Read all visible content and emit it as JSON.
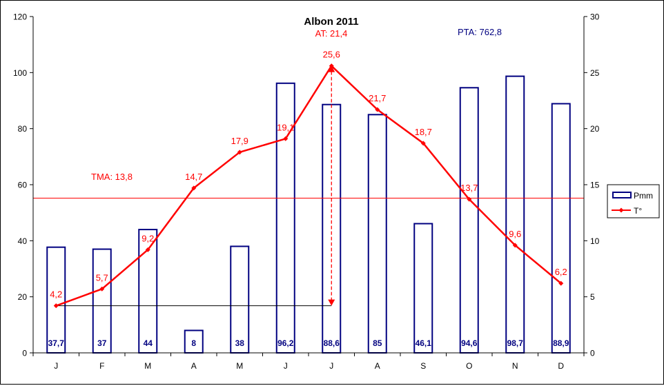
{
  "chart_data": {
    "type": "bar",
    "title": "Albon 2011",
    "annotations": {
      "at": "AT: 21,4",
      "pta": "PTA: 762,8",
      "tma": "TMA: 13,8",
      "tma_value": 13.8,
      "at_range": [
        4.2,
        25.6
      ]
    },
    "categories": [
      "J",
      "F",
      "M",
      "A",
      "M",
      "J",
      "J",
      "A",
      "S",
      "O",
      "N",
      "D"
    ],
    "series": [
      {
        "name": "Pmm",
        "type": "bar",
        "axis": "left",
        "color": "#000080",
        "values": [
          37.7,
          37,
          44,
          8,
          38,
          96.2,
          88.6,
          85,
          46.1,
          94.6,
          98.7,
          88.9
        ],
        "labels": [
          "37,7",
          "37",
          "44",
          "8",
          "38",
          "96,2",
          "88,6",
          "85",
          "46,1",
          "94,6",
          "98,7",
          "88,9"
        ]
      },
      {
        "name": "T°",
        "type": "line",
        "axis": "right",
        "color": "#ff0000",
        "values": [
          4.2,
          5.7,
          9.2,
          14.7,
          17.9,
          19.1,
          25.6,
          21.7,
          18.7,
          13.7,
          9.6,
          6.2
        ],
        "labels": [
          "4,2",
          "5,7",
          "9,2",
          "14,7",
          "17,9",
          "19,1",
          "25,6",
          "21,7",
          "18,7",
          "13,7",
          "9,6",
          "6,2"
        ]
      }
    ],
    "ylim_left": [
      0,
      120
    ],
    "yticks_left": [
      0,
      20,
      40,
      60,
      80,
      100,
      120
    ],
    "ylim_right": [
      0,
      30
    ],
    "yticks_right": [
      0,
      5,
      10,
      15,
      20,
      25,
      30
    ],
    "grid": false,
    "legend_position": "right"
  }
}
